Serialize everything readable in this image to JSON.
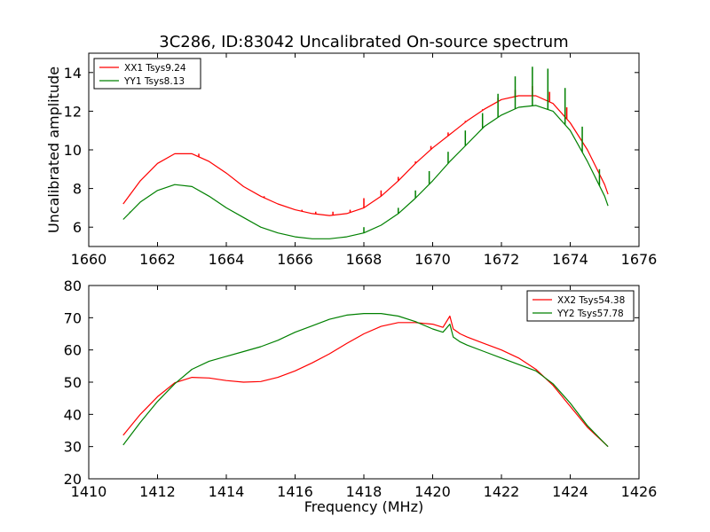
{
  "figure": {
    "title": "3C286, ID:83042 Uncalibrated On-source spectrum"
  },
  "chart_data": [
    {
      "type": "line",
      "title": "3C286, ID:83042 Uncalibrated On-source spectrum",
      "xlabel": "",
      "ylabel": "Uncalibrated amplitude",
      "xlim": [
        1660,
        1676
      ],
      "ylim": [
        5,
        15
      ],
      "xticks": [
        1660,
        1662,
        1664,
        1666,
        1668,
        1670,
        1672,
        1674,
        1676
      ],
      "yticks": [
        6,
        8,
        10,
        12,
        14
      ],
      "grid": false,
      "legend_position": "top-left",
      "series": [
        {
          "name": "XX1 Tsys9.24",
          "color": "#ff0000",
          "x": [
            1661.0,
            1661.5,
            1662.0,
            1662.5,
            1663.0,
            1663.5,
            1664.0,
            1664.5,
            1665.0,
            1665.5,
            1666.0,
            1666.5,
            1667.0,
            1667.5,
            1668.0,
            1668.5,
            1669.0,
            1669.5,
            1670.0,
            1670.5,
            1671.0,
            1671.5,
            1672.0,
            1672.5,
            1673.0,
            1673.5,
            1674.0,
            1674.5,
            1675.0,
            1675.1
          ],
          "y": [
            7.2,
            8.4,
            9.3,
            9.8,
            9.8,
            9.4,
            8.8,
            8.1,
            7.6,
            7.2,
            6.9,
            6.7,
            6.6,
            6.7,
            7.0,
            7.6,
            8.4,
            9.3,
            10.1,
            10.8,
            11.5,
            12.1,
            12.6,
            12.8,
            12.8,
            12.4,
            11.4,
            10.0,
            8.2,
            7.7
          ],
          "spikes": [
            {
              "x": 1661.2,
              "y": 7.7
            },
            {
              "x": 1663.2,
              "y": 9.8
            },
            {
              "x": 1664.6,
              "y": 8.0
            },
            {
              "x": 1665.1,
              "y": 7.6
            },
            {
              "x": 1666.2,
              "y": 6.9
            },
            {
              "x": 1666.6,
              "y": 6.8
            },
            {
              "x": 1667.1,
              "y": 6.8
            },
            {
              "x": 1667.6,
              "y": 6.9
            },
            {
              "x": 1668.0,
              "y": 7.5
            },
            {
              "x": 1668.5,
              "y": 7.9
            },
            {
              "x": 1669.0,
              "y": 8.6
            },
            {
              "x": 1669.5,
              "y": 9.4
            },
            {
              "x": 1669.95,
              "y": 10.2
            },
            {
              "x": 1670.45,
              "y": 10.9
            },
            {
              "x": 1670.95,
              "y": 11.5
            },
            {
              "x": 1671.45,
              "y": 12.1
            },
            {
              "x": 1671.9,
              "y": 12.7
            },
            {
              "x": 1672.4,
              "y": 13.1
            },
            {
              "x": 1672.9,
              "y": 13.3
            },
            {
              "x": 1673.4,
              "y": 13.0
            },
            {
              "x": 1673.9,
              "y": 12.2
            }
          ]
        },
        {
          "name": "YY1 Tsys8.13",
          "color": "#008000",
          "x": [
            1661.0,
            1661.5,
            1662.0,
            1662.5,
            1663.0,
            1663.5,
            1664.0,
            1664.5,
            1665.0,
            1665.5,
            1666.0,
            1666.5,
            1667.0,
            1667.5,
            1668.0,
            1668.5,
            1669.0,
            1669.5,
            1670.0,
            1670.5,
            1671.0,
            1671.5,
            1672.0,
            1672.5,
            1673.0,
            1673.5,
            1674.0,
            1674.5,
            1675.0,
            1675.1
          ],
          "y": [
            6.4,
            7.3,
            7.9,
            8.2,
            8.1,
            7.6,
            7.0,
            6.5,
            6.0,
            5.7,
            5.5,
            5.4,
            5.4,
            5.5,
            5.7,
            6.1,
            6.7,
            7.5,
            8.4,
            9.4,
            10.3,
            11.2,
            11.8,
            12.2,
            12.3,
            12.0,
            11.0,
            9.4,
            7.6,
            7.1
          ],
          "spikes": [
            {
              "x": 1661.2,
              "y": 6.8
            },
            {
              "x": 1668.0,
              "y": 6.0
            },
            {
              "x": 1669.0,
              "y": 7.0
            },
            {
              "x": 1669.5,
              "y": 7.9
            },
            {
              "x": 1669.9,
              "y": 8.9
            },
            {
              "x": 1670.45,
              "y": 9.9
            },
            {
              "x": 1670.95,
              "y": 11.0
            },
            {
              "x": 1671.45,
              "y": 11.9
            },
            {
              "x": 1671.9,
              "y": 12.9
            },
            {
              "x": 1672.4,
              "y": 13.8
            },
            {
              "x": 1672.9,
              "y": 14.3
            },
            {
              "x": 1673.35,
              "y": 14.2
            },
            {
              "x": 1673.85,
              "y": 13.2
            },
            {
              "x": 1674.35,
              "y": 11.2
            },
            {
              "x": 1674.85,
              "y": 9.0
            }
          ]
        }
      ]
    },
    {
      "type": "line",
      "title": "",
      "xlabel": "Frequency (MHz)",
      "ylabel": "",
      "xlim": [
        1410,
        1426
      ],
      "ylim": [
        20,
        80
      ],
      "xticks": [
        1410,
        1412,
        1414,
        1416,
        1418,
        1420,
        1422,
        1424,
        1426
      ],
      "yticks": [
        20,
        30,
        40,
        50,
        60,
        70,
        80
      ],
      "grid": false,
      "legend_position": "top-right",
      "series": [
        {
          "name": "XX2 Tsys54.38",
          "color": "#ff0000",
          "x": [
            1411.0,
            1411.5,
            1412.0,
            1412.5,
            1413.0,
            1413.5,
            1414.0,
            1414.5,
            1415.0,
            1415.5,
            1416.0,
            1416.5,
            1417.0,
            1417.5,
            1418.0,
            1418.5,
            1419.0,
            1419.5,
            1420.0,
            1420.3,
            1420.5,
            1420.6,
            1420.8,
            1421.0,
            1421.5,
            1422.0,
            1422.5,
            1423.0,
            1423.5,
            1424.0,
            1424.5,
            1425.0,
            1425.1
          ],
          "y": [
            33.5,
            40.0,
            45.5,
            49.8,
            51.5,
            51.3,
            50.5,
            50.0,
            50.2,
            51.5,
            53.5,
            56.0,
            58.8,
            62.0,
            65.0,
            67.3,
            68.5,
            68.5,
            68.0,
            67.0,
            70.5,
            66.5,
            65.0,
            64.0,
            62.0,
            60.0,
            57.5,
            54.0,
            49.0,
            42.5,
            36.0,
            31.0,
            30.0
          ],
          "spikes": []
        },
        {
          "name": "YY2 Tsys57.78",
          "color": "#008000",
          "x": [
            1411.0,
            1411.5,
            1412.0,
            1412.5,
            1413.0,
            1413.5,
            1414.0,
            1414.5,
            1415.0,
            1415.5,
            1416.0,
            1416.5,
            1417.0,
            1417.5,
            1418.0,
            1418.5,
            1419.0,
            1419.5,
            1420.0,
            1420.3,
            1420.5,
            1420.6,
            1420.8,
            1421.0,
            1421.5,
            1422.0,
            1422.5,
            1423.0,
            1423.5,
            1424.0,
            1424.5,
            1425.0,
            1425.1
          ],
          "y": [
            30.5,
            37.5,
            44.0,
            49.5,
            54.0,
            56.5,
            58.0,
            59.5,
            61.0,
            63.0,
            65.5,
            67.5,
            69.5,
            70.8,
            71.3,
            71.3,
            70.5,
            68.8,
            66.5,
            65.5,
            68.0,
            64.0,
            62.5,
            61.5,
            59.5,
            57.5,
            55.5,
            53.5,
            49.5,
            43.5,
            36.5,
            31.0,
            30.0
          ],
          "spikes": []
        }
      ]
    }
  ]
}
